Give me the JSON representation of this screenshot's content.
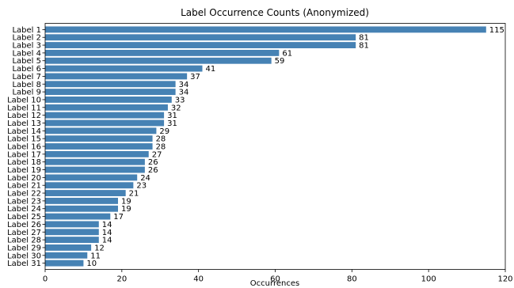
{
  "chart_data": {
    "type": "bar",
    "orientation": "horizontal",
    "title": "Label Occurrence Counts (Anonymized)",
    "xlabel": "Occurrences",
    "ylabel": "",
    "xlim": [
      0,
      120
    ],
    "xticks": [
      0,
      20,
      40,
      60,
      80,
      100,
      120
    ],
    "grid": false,
    "color": "#4682b4",
    "categories": [
      "Label 1",
      "Label 2",
      "Label 3",
      "Label 4",
      "Label 5",
      "Label 6",
      "Label 7",
      "Label 8",
      "Label 9",
      "Label 10",
      "Label 11",
      "Label 12",
      "Label 13",
      "Label 14",
      "Label 15",
      "Label 16",
      "Label 17",
      "Label 18",
      "Label 19",
      "Label 20",
      "Label 21",
      "Label 22",
      "Label 23",
      "Label 24",
      "Label 25",
      "Label 26",
      "Label 27",
      "Label 28",
      "Label 29",
      "Label 30",
      "Label 31"
    ],
    "values": [
      115,
      81,
      81,
      61,
      59,
      41,
      37,
      34,
      34,
      33,
      32,
      31,
      31,
      29,
      28,
      28,
      27,
      26,
      26,
      24,
      23,
      21,
      19,
      19,
      17,
      14,
      14,
      14,
      12,
      11,
      10
    ]
  }
}
